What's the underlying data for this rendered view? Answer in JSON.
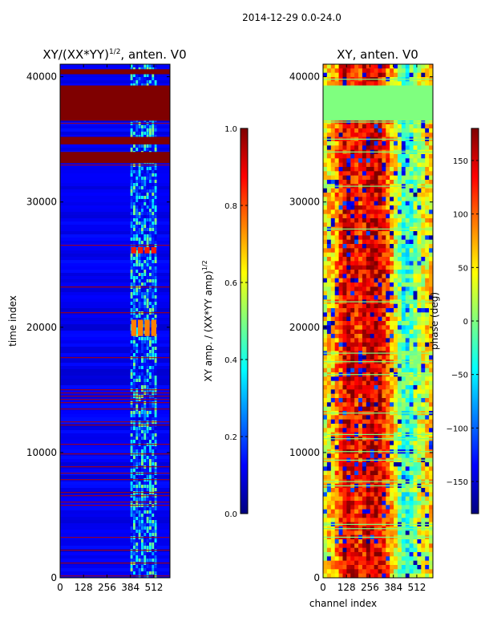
{
  "figure": {
    "suptitle": "2014-12-29 0.0-24.0",
    "shared_xlabel": "channel index"
  },
  "colors": {
    "background": "#ffffff",
    "axis": "#000000",
    "jet": [
      "#00007f",
      "#0000ff",
      "#007fff",
      "#00ffff",
      "#7fff7f",
      "#ffff00",
      "#ff7f00",
      "#ff0000",
      "#7f0000"
    ]
  },
  "chart_data": [
    {
      "type": "heatmap",
      "title_main": "XY/(XX*YY)",
      "title_sup": "1/2",
      "title_suffix": ", anten. V0",
      "xlabel": "",
      "ylabel": "time index",
      "xlim": [
        0,
        600
      ],
      "ylim": [
        0,
        41000
      ],
      "xticks": [
        0,
        128,
        256,
        384,
        512
      ],
      "yticks": [
        0,
        10000,
        20000,
        30000,
        40000
      ],
      "colorbar": {
        "label_main": "XY amp. / (XX*YY amp)",
        "label_sup": "1/2",
        "range": [
          0.0,
          1.0
        ],
        "ticks": [
          0.0,
          0.2,
          0.4,
          0.6,
          0.8,
          1.0
        ],
        "tick_labels": [
          "0.0",
          "0.2",
          "0.4",
          "0.6",
          "0.8",
          "1.0"
        ]
      },
      "colormap": "jet",
      "background_value": 0.08,
      "features": [
        {
          "kind": "band",
          "y0": 36500,
          "y1": 39300,
          "value": 1.0,
          "note": "flagged block"
        },
        {
          "kind": "band",
          "y0": 34600,
          "y1": 35200,
          "value": 1.0
        },
        {
          "kind": "band",
          "y0": 33100,
          "y1": 34000,
          "value": 1.0
        },
        {
          "kind": "band",
          "y0": 40200,
          "y1": 40600,
          "value": 1.0
        },
        {
          "kind": "channel_region",
          "x0": 384,
          "x1": 530,
          "y0": 0,
          "y1": 41000,
          "value": 0.35,
          "note": "high-amplitude channel block"
        },
        {
          "kind": "patch",
          "x0": 384,
          "x1": 530,
          "y0": 25900,
          "y1": 26400,
          "value": 0.85
        },
        {
          "kind": "patch",
          "x0": 384,
          "x1": 530,
          "y0": 19300,
          "y1": 20600,
          "value": 0.75
        },
        {
          "kind": "lines_region",
          "y0": 0,
          "y1": 15000,
          "value": 0.95,
          "note": "dense flagged time rows"
        }
      ]
    },
    {
      "type": "heatmap",
      "title": "XY, anten. V0",
      "xlabel": "channel index",
      "ylabel": "",
      "xlim": [
        0,
        600
      ],
      "ylim": [
        0,
        41000
      ],
      "xticks": [
        0,
        128,
        256,
        384,
        512
      ],
      "yticks": [
        0,
        10000,
        20000,
        30000,
        40000
      ],
      "colorbar": {
        "label": "phase (deg)",
        "range": [
          -180,
          180
        ],
        "ticks": [
          -150,
          -100,
          -50,
          0,
          50,
          100,
          150
        ],
        "tick_labels": [
          "−150",
          "−100",
          "−50",
          "0",
          "50",
          "100",
          "150"
        ]
      },
      "colormap": "jet",
      "features": [
        {
          "kind": "band",
          "y0": 36500,
          "y1": 39300,
          "value": 0,
          "note": "flagged block shown as zero phase"
        },
        {
          "kind": "channel_profile",
          "x": [
            0,
            60,
            128,
            200,
            256,
            320,
            384,
            450,
            530,
            600
          ],
          "value": [
            40,
            70,
            150,
            120,
            160,
            140,
            60,
            -40,
            30,
            60
          ],
          "note": "dominant phase across channels"
        }
      ]
    }
  ]
}
